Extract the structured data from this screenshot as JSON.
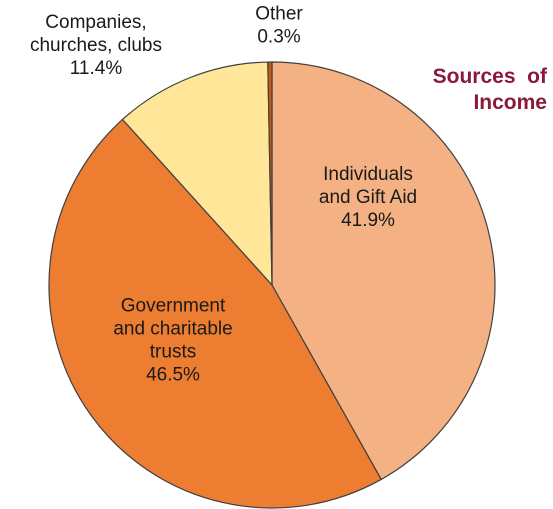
{
  "chart_data": {
    "type": "pie",
    "title_lines": [
      "Sources  of",
      "Income"
    ],
    "slices": [
      {
        "name": "Individuals and Gift Aid",
        "value": 41.9,
        "label_lines": [
          "Individuals",
          "and Gift Aid",
          "41.9%"
        ],
        "color": "#f4b183"
      },
      {
        "name": "Government and charitable trusts",
        "value": 46.5,
        "label_lines": [
          "Government",
          "and charitable",
          "trusts",
          "46.5%"
        ],
        "color": "#ed7d31"
      },
      {
        "name": "Companies, churches, clubs",
        "value": 11.4,
        "label_lines": [
          "Companies,",
          "churches, clubs",
          "11.4%"
        ],
        "color": "#ffe699"
      },
      {
        "name": "Other",
        "value": 0.3,
        "label_lines": [
          "Other",
          "0.3%"
        ],
        "color": "#c55a11"
      }
    ],
    "start_angle_deg": 0,
    "direction": "clockwise",
    "legend": "none"
  }
}
